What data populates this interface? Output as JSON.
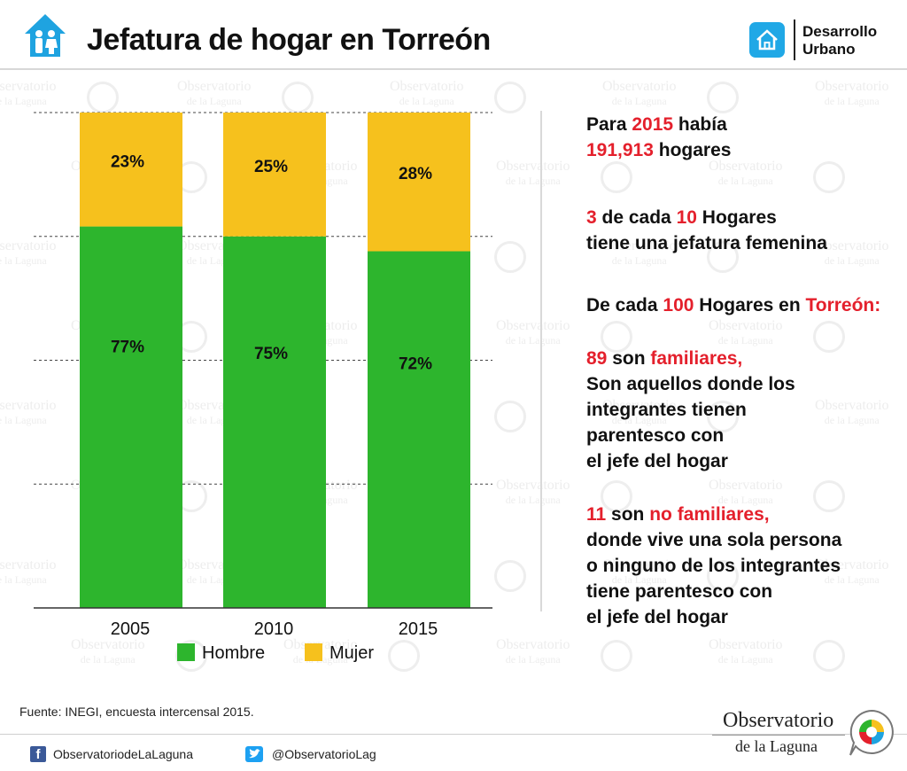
{
  "header": {
    "title": "Jefatura de hogar en Torreón",
    "brand_line1": "Desarrollo",
    "brand_line2": "Urbano"
  },
  "colors": {
    "hombre": "#2db52d",
    "mujer": "#f6c11d",
    "accent_red": "#e4202c",
    "brand_blue": "#20a8e6"
  },
  "chart_data": {
    "type": "bar",
    "stacked": true,
    "categories": [
      "2005",
      "2010",
      "2015"
    ],
    "series": [
      {
        "name": "Hombre",
        "values": [
          77,
          75,
          72
        ],
        "labels": [
          "77%",
          "75%",
          "72%"
        ],
        "color": "#2db52d"
      },
      {
        "name": "Mujer",
        "values": [
          23,
          25,
          28
        ],
        "labels": [
          "23%",
          "25%",
          "28%"
        ],
        "color": "#f6c11d"
      }
    ],
    "ylim": [
      0,
      100
    ],
    "grid": true,
    "legend_position": "bottom"
  },
  "legend": {
    "hombre": "Hombre",
    "mujer": "Mujer"
  },
  "facts": {
    "p1_a": "Para ",
    "p1_year": "2015",
    "p1_b": " había",
    "p1_num": "191,913",
    "p1_c": " hogares",
    "p2_n1": "3",
    "p2_a": " de cada ",
    "p2_n2": "10",
    "p2_b": " Hogares",
    "p2_line2": "tiene una jefatura femenina",
    "p3_a": "De cada ",
    "p3_n": "100",
    "p3_b": " Hogares en ",
    "p3_city": "Torreón:",
    "p4_n": "89",
    "p4_a": " son ",
    "p4_kind": "familiares,",
    "p4_lines": [
      "Son aquellos donde los",
      "integrantes tienen",
      "parentesco con",
      "el jefe del hogar"
    ],
    "p5_n": "11",
    "p5_a": " son ",
    "p5_kind": "no familiares,",
    "p5_lines": [
      "donde vive una sola persona",
      "o ninguno de los integrantes",
      "tiene parentesco con",
      "el jefe del hogar"
    ]
  },
  "footer": {
    "source": "Fuente: INEGI, encuesta intercensal 2015.",
    "facebook": "ObservatoriodeLaLaguna",
    "twitter": "@ObservatorioLag",
    "org_title": "Observatorio",
    "org_subtitle": "de la Laguna"
  },
  "watermark": {
    "title": "Observatorio",
    "subtitle": "de la Laguna"
  },
  "icons": [
    "family-house-icon",
    "home-icon",
    "facebook-icon",
    "twitter-icon",
    "observatorio-logo-icon"
  ]
}
